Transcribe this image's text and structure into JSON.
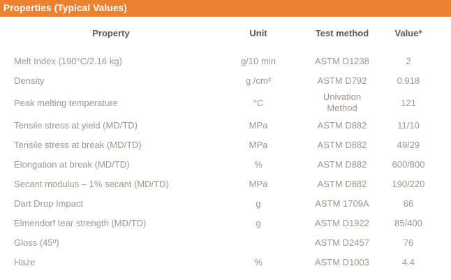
{
  "colors": {
    "accent_orange": "#EC8231",
    "header_text": "#5C5752",
    "body_text": "#9D968D",
    "title_text": "#FFFFFF"
  },
  "title_bar": {
    "title": "Properties (Typical Values)"
  },
  "table": {
    "headers": {
      "property": "Property",
      "unit": "Unit",
      "test_method": "Test method",
      "value": "Value*"
    },
    "rows": [
      {
        "property": "Melt Index (190°C/2.16 kg)",
        "unit": "g/10 min",
        "test_method": "ASTM D1238",
        "value": "2"
      },
      {
        "property": "Density",
        "unit": "g /cm³",
        "test_method": "ASTM D792",
        "value": "0.918"
      },
      {
        "property": "Peak melting temperature",
        "unit": "°C",
        "test_method": "Univation Method",
        "value": "121"
      },
      {
        "property": "Tensile stress at yield (MD/TD)",
        "unit": "MPa",
        "test_method": "ASTM D882",
        "value": "11/10"
      },
      {
        "property": "Tensile stress at break (MD/TD)",
        "unit": "MPa",
        "test_method": "ASTM D882",
        "value": "49/29"
      },
      {
        "property": "Elongation at break (MD/TD)",
        "unit": "%",
        "test_method": "ASTM D882",
        "value": "600/800"
      },
      {
        "property": "Secant modulus – 1% secant (MD/TD)",
        "unit": "MPa",
        "test_method": "ASTM D882",
        "value": "190/220"
      },
      {
        "property": "Dart Drop Impact",
        "unit": "g",
        "test_method": "ASTM 1709A",
        "value": "66"
      },
      {
        "property": "Elmendorf tear strength (MD/TD)",
        "unit": "g",
        "test_method": "ASTM D1922",
        "value": "85/400"
      },
      {
        "property": "Gloss (45º)",
        "unit": "",
        "test_method": "ASTM D2457",
        "value": "76"
      },
      {
        "property": "Haze",
        "unit": "%",
        "test_method": "ASTM D1003",
        "value": "4.4"
      }
    ]
  }
}
